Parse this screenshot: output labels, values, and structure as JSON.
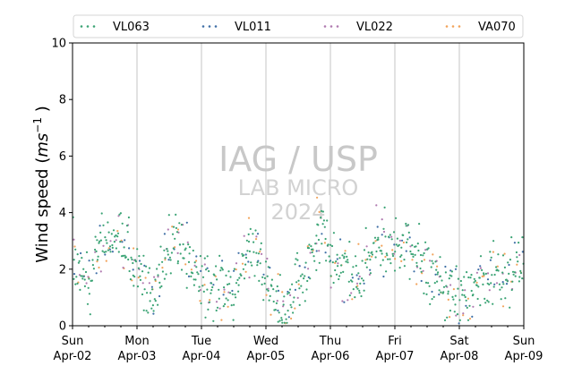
{
  "chart_data": {
    "type": "scatter",
    "ylabel_main": "Wind speed (",
    "ylabel_unit": "ms",
    "ylabel_exp": "−1",
    "ylabel_close": ")",
    "ylim": [
      0,
      10
    ],
    "yticks": [
      "0",
      "2",
      "4",
      "6",
      "8",
      "10"
    ],
    "xlim": [
      "2023-04-02",
      "2023-04-09"
    ],
    "xticks": [
      {
        "day": "Sun",
        "date": "Apr-02"
      },
      {
        "day": "Mon",
        "date": "Apr-03"
      },
      {
        "day": "Tue",
        "date": "Apr-04"
      },
      {
        "day": "Wed",
        "date": "Apr-05"
      },
      {
        "day": "Thu",
        "date": "Apr-06"
      },
      {
        "day": "Fri",
        "date": "Apr-07"
      },
      {
        "day": "Sat",
        "date": "Apr-08"
      },
      {
        "day": "Sun",
        "date": "Apr-09"
      }
    ],
    "grid": "vertical lines at day boundaries",
    "legend_position": "top",
    "series": [
      {
        "name": "VL063",
        "color": "#3aa374"
      },
      {
        "name": "VL011",
        "color": "#3f6fa6"
      },
      {
        "name": "VL022",
        "color": "#b07ab0"
      },
      {
        "name": "VA070",
        "color": "#f2a35a"
      }
    ],
    "daily_profile": {
      "hours": [
        0,
        3,
        6,
        9,
        12,
        15,
        18,
        21
      ],
      "mean_speed_by_day": [
        [
          2.4,
          1.8,
          1.5,
          2.5,
          2.8,
          3.0,
          3.2,
          2.5
        ],
        [
          2.0,
          1.6,
          1.3,
          2.0,
          2.8,
          3.1,
          2.7,
          2.2
        ],
        [
          1.6,
          1.4,
          1.2,
          1.5,
          1.3,
          2.0,
          2.8,
          2.5
        ],
        [
          1.4,
          0.9,
          0.5,
          0.7,
          1.6,
          2.0,
          2.6,
          3.6
        ],
        [
          2.5,
          2.0,
          1.8,
          1.7,
          1.9,
          2.4,
          2.9,
          3.0
        ],
        [
          2.9,
          2.7,
          2.5,
          2.3,
          2.0,
          1.9,
          1.3,
          1.2
        ],
        [
          1.2,
          1.0,
          1.3,
          1.5,
          1.7,
          1.6,
          1.8,
          2.1
        ],
        [
          2.5,
          2.8,
          3.2,
          3.3,
          2.9,
          2.6,
          2.4,
          2.3
        ]
      ],
      "scatter_spread": 0.55
    }
  },
  "watermark": {
    "line1": "IAG / USP",
    "line2": "LAB MICRO",
    "line3": "2024"
  }
}
